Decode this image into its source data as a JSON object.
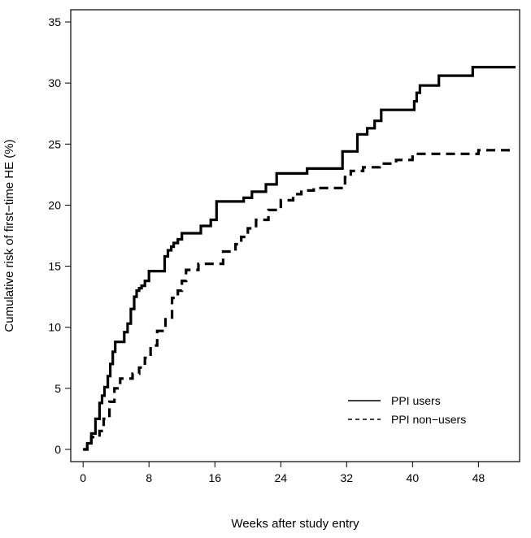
{
  "chart_data": {
    "type": "line",
    "title": "",
    "xlabel": "Weeks after study entry",
    "ylabel": "Cumulative risk of first−time HE (%)",
    "xlim": [
      -1.5,
      53
    ],
    "ylim": [
      -1,
      36
    ],
    "xticks": [
      0,
      8,
      16,
      24,
      32,
      40,
      48
    ],
    "yticks": [
      0,
      5,
      10,
      15,
      20,
      25,
      30,
      35
    ],
    "grid": false,
    "legend_position": "bottom-right",
    "step": true,
    "series": [
      {
        "name": "PPI users",
        "line_style": "solid",
        "color": "#000000",
        "x": [
          0,
          0.5,
          1.0,
          1.5,
          2.0,
          2.3,
          2.6,
          3.0,
          3.3,
          3.6,
          3.9,
          4.3,
          5.0,
          5.4,
          5.8,
          6.2,
          6.5,
          6.8,
          7.1,
          7.5,
          8.0,
          8.5,
          9.9,
          10.3,
          10.7,
          11.0,
          11.5,
          12.0,
          13.8,
          14.3,
          15.5,
          16.2,
          19.5,
          20.5,
          22.2,
          23.5,
          24.3,
          27.2,
          31.5,
          32.2,
          33.3,
          34.5,
          35.4,
          36.2,
          40.2,
          40.5,
          40.9,
          41.4,
          43.2,
          47.3,
          52.5
        ],
        "y": [
          0,
          0.5,
          1.3,
          2.5,
          3.8,
          4.4,
          5.1,
          6.0,
          7.0,
          8.0,
          8.8,
          8.8,
          9.6,
          10.3,
          11.5,
          12.5,
          13.0,
          13.2,
          13.4,
          13.8,
          14.6,
          14.6,
          15.8,
          16.3,
          16.6,
          16.9,
          17.2,
          17.7,
          17.7,
          18.3,
          18.8,
          20.3,
          20.6,
          21.1,
          21.7,
          22.6,
          22.6,
          23.0,
          24.4,
          24.4,
          25.8,
          26.3,
          26.9,
          27.8,
          28.5,
          29.2,
          29.8,
          29.8,
          30.6,
          31.3,
          31.3
        ]
      },
      {
        "name": "PPI non−users",
        "line_style": "dashed",
        "color": "#000000",
        "x": [
          0,
          0.5,
          1.0,
          2.0,
          2.5,
          3.2,
          3.8,
          4.5,
          6.0,
          6.8,
          7.5,
          8.2,
          9.0,
          10.0,
          10.8,
          11.5,
          12.0,
          12.5,
          14.0,
          17.0,
          18.5,
          19.2,
          20.0,
          21.0,
          22.5,
          24.0,
          25.5,
          26.5,
          28.0,
          31.0,
          31.8,
          32.5,
          34.0,
          36.0,
          38.0,
          40.0,
          48.0,
          52.5
        ],
        "y": [
          0,
          0.3,
          1.0,
          1.5,
          2.5,
          3.9,
          5.0,
          5.8,
          6.2,
          6.7,
          7.5,
          8.5,
          9.7,
          10.8,
          12.4,
          13.0,
          13.8,
          14.7,
          15.2,
          16.2,
          16.8,
          17.4,
          18.1,
          18.8,
          19.6,
          20.4,
          20.9,
          21.2,
          21.4,
          21.4,
          22.3,
          22.8,
          23.1,
          23.4,
          23.7,
          24.2,
          24.5,
          24.5
        ]
      }
    ]
  }
}
